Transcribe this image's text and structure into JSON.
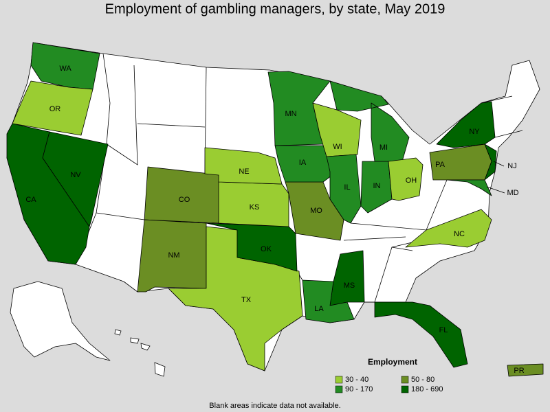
{
  "title": "Employment of gambling managers, by state, May 2019",
  "legend": {
    "title": "Employment",
    "items": [
      {
        "label": "30 - 40",
        "color": "#9acd32"
      },
      {
        "label": "50 - 80",
        "color": "#6b8e23"
      },
      {
        "label": "90 - 170",
        "color": "#228b22"
      },
      {
        "label": "180 - 690",
        "color": "#006400"
      }
    ]
  },
  "regions": [
    {
      "label": "WA",
      "color": "#228b22"
    },
    {
      "label": "OR",
      "color": "#9acd32"
    },
    {
      "label": "CA",
      "color": "#006400"
    },
    {
      "label": "NV",
      "color": "#006400"
    },
    {
      "label": "CO",
      "color": "#6b8e23"
    },
    {
      "label": "NM",
      "color": "#6b8e23"
    },
    {
      "label": "TX",
      "color": "#9acd32"
    },
    {
      "label": "OK",
      "color": "#006400"
    },
    {
      "label": "KS",
      "color": "#9acd32"
    },
    {
      "label": "NE",
      "color": "#9acd32"
    },
    {
      "label": "MO",
      "color": "#6b8e23"
    },
    {
      "label": "IA",
      "color": "#228b22"
    },
    {
      "label": "MN",
      "color": "#228b22"
    },
    {
      "label": "WI",
      "color": "#9acd32"
    },
    {
      "label": "IL",
      "color": "#228b22"
    },
    {
      "label": "IN",
      "color": "#228b22"
    },
    {
      "label": "MI",
      "color": "#228b22"
    },
    {
      "label": "OH",
      "color": "#9acd32"
    },
    {
      "label": "PA",
      "color": "#6b8e23"
    },
    {
      "label": "NY",
      "color": "#006400"
    },
    {
      "label": "NJ",
      "color": "#006400"
    },
    {
      "label": "MD",
      "color": "#228b22"
    },
    {
      "label": "NC",
      "color": "#9acd32"
    },
    {
      "label": "MS",
      "color": "#006400"
    },
    {
      "label": "LA",
      "color": "#228b22"
    },
    {
      "label": "FL",
      "color": "#006400"
    },
    {
      "label": "PR",
      "color": "#6b8e23"
    }
  ],
  "note": "Blank areas indicate data not available."
}
